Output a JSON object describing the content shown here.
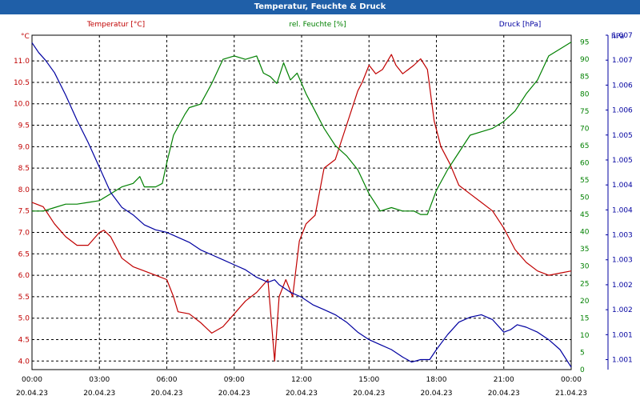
{
  "window": {
    "title": "Temperatur, Feuchte & Druck"
  },
  "colors": {
    "titlebar": "#1f5fa8",
    "temp": "#c00000",
    "hum": "#008000",
    "press": "#0000a0",
    "grid": "#000000"
  },
  "chart_data": {
    "type": "line",
    "title": "Temperatur, Feuchte & Druck",
    "grid": true,
    "x": {
      "tick_times": [
        "00:00",
        "03:00",
        "06:00",
        "09:00",
        "12:00",
        "15:00",
        "18:00",
        "21:00",
        "00:00"
      ],
      "tick_dates": [
        "20.04.23",
        "20.04.23",
        "20.04.23",
        "20.04.23",
        "20.04.23",
        "20.04.23",
        "20.04.23",
        "20.04.23",
        "21.04.23"
      ],
      "range_hours": [
        0,
        24
      ]
    },
    "axes": {
      "temp": {
        "label": "Temperatur [°C]",
        "unit": "°C",
        "ylim": [
          3.8,
          11.6
        ],
        "ticks": [
          "4.0",
          "4.5",
          "5.0",
          "5.5",
          "6.0",
          "6.5",
          "7.0",
          "7.5",
          "8.0",
          "8.5",
          "9.0",
          "9.5",
          "10.0",
          "10.5",
          "11.0"
        ]
      },
      "hum": {
        "label": "rel. Feuchte [%]",
        "unit": "%",
        "ylim": [
          0,
          97
        ],
        "ticks": [
          "0",
          "5",
          "10",
          "15",
          "20",
          "25",
          "30",
          "35",
          "40",
          "45",
          "50",
          "55",
          "60",
          "65",
          "70",
          "75",
          "80",
          "85",
          "90",
          "95"
        ]
      },
      "press": {
        "label": "Druck [hPa]",
        "unit": "hPa",
        "ylim": [
          1000.8,
          1007.5
        ],
        "ticks": [
          "1.001",
          "1.001",
          "1.002",
          "1.002",
          "1.003",
          "1.003",
          "1.004",
          "1.004",
          "1.005",
          "1.005",
          "1.006",
          "1.006",
          "1.007",
          "1.007"
        ]
      }
    },
    "series": [
      {
        "name": "Temperatur [°C]",
        "axis": "temp",
        "color": "#c00000",
        "x": [
          0,
          0.5,
          1,
          1.5,
          2,
          2.5,
          3,
          3.2,
          3.5,
          4,
          4.5,
          5,
          5.5,
          6,
          6.3,
          6.5,
          7,
          7.5,
          8,
          8.5,
          9,
          9.5,
          10,
          10.5,
          10.8,
          11,
          11.3,
          11.6,
          11.9,
          12.2,
          12.6,
          13,
          13.5,
          14,
          14.5,
          14.7,
          15,
          15.3,
          15.6,
          16,
          16.2,
          16.5,
          17,
          17.3,
          17.6,
          17.9,
          18.2,
          18.6,
          19,
          19.5,
          20,
          20.5,
          21,
          21.5,
          22,
          22.5,
          23,
          23.5,
          24
        ],
        "y": [
          7.7,
          7.6,
          7.2,
          6.9,
          6.7,
          6.7,
          7.0,
          7.05,
          6.9,
          6.4,
          6.2,
          6.1,
          6.0,
          5.9,
          5.5,
          5.15,
          5.1,
          4.9,
          4.65,
          4.8,
          5.1,
          5.4,
          5.6,
          5.9,
          4.0,
          5.5,
          5.9,
          5.5,
          6.8,
          7.2,
          7.4,
          8.5,
          8.7,
          9.5,
          10.3,
          10.5,
          10.9,
          10.7,
          10.8,
          11.15,
          10.9,
          10.7,
          10.9,
          11.05,
          10.8,
          9.6,
          9.0,
          8.6,
          8.1,
          7.9,
          7.7,
          7.5,
          7.1,
          6.6,
          6.3,
          6.1,
          6.0,
          6.05,
          6.1
        ]
      },
      {
        "name": "rel. Feuchte [%]",
        "axis": "hum",
        "color": "#008000",
        "x": [
          0,
          0.5,
          1,
          1.5,
          2,
          2.5,
          3,
          3.5,
          4,
          4.5,
          4.8,
          5,
          5.5,
          5.8,
          6,
          6.3,
          6.8,
          7,
          7.5,
          8,
          8.5,
          9,
          9.5,
          10,
          10.3,
          10.6,
          10.9,
          11.2,
          11.5,
          11.8,
          12.2,
          12.6,
          13,
          13.5,
          14,
          14.5,
          15,
          15.5,
          16,
          16.5,
          17,
          17.3,
          17.6,
          18,
          18.5,
          19,
          19.5,
          20,
          20.5,
          21,
          21.5,
          22,
          22.5,
          23,
          23.5,
          24
        ],
        "y": [
          46,
          46,
          47,
          48,
          48,
          48.5,
          49,
          51,
          53,
          54,
          56,
          53,
          53,
          54,
          60,
          68,
          74,
          76,
          77,
          83,
          90,
          91,
          90,
          91,
          86,
          85,
          83,
          89,
          84,
          86,
          80,
          75,
          70,
          65,
          62,
          58,
          51,
          46,
          47,
          46,
          46,
          45,
          45,
          52,
          58,
          63,
          68,
          69,
          70,
          72,
          75,
          80,
          84,
          91,
          93,
          95
        ]
      },
      {
        "name": "Druck [hPa]",
        "axis": "press",
        "color": "#0000a0",
        "x": [
          0,
          0.3,
          0.6,
          1,
          1.5,
          2,
          2.5,
          3,
          3.5,
          4,
          4.5,
          5,
          5.5,
          6,
          6.5,
          7,
          7.5,
          8,
          8.5,
          9,
          9.5,
          10,
          10.5,
          10.8,
          11,
          11.5,
          12,
          12.5,
          13,
          13.5,
          14,
          14.5,
          15,
          15.5,
          16,
          16.5,
          16.9,
          17.3,
          17.7,
          18,
          18.5,
          19,
          19.5,
          20,
          20.5,
          21,
          21.3,
          21.6,
          22,
          22.5,
          23,
          23.5,
          24
        ],
        "y": [
          1007.35,
          1007.15,
          1007.0,
          1006.75,
          1006.3,
          1005.8,
          1005.35,
          1004.85,
          1004.35,
          1004.05,
          1003.9,
          1003.7,
          1003.6,
          1003.55,
          1003.45,
          1003.35,
          1003.2,
          1003.1,
          1003.0,
          1002.9,
          1002.8,
          1002.65,
          1002.55,
          1002.6,
          1002.5,
          1002.35,
          1002.25,
          1002.1,
          1002.0,
          1001.9,
          1001.75,
          1001.55,
          1001.4,
          1001.3,
          1001.2,
          1001.05,
          1000.95,
          1001.0,
          1001.0,
          1001.2,
          1001.5,
          1001.75,
          1001.85,
          1001.9,
          1001.8,
          1001.55,
          1001.6,
          1001.7,
          1001.65,
          1001.55,
          1001.4,
          1001.2,
          1000.85
        ]
      }
    ]
  }
}
